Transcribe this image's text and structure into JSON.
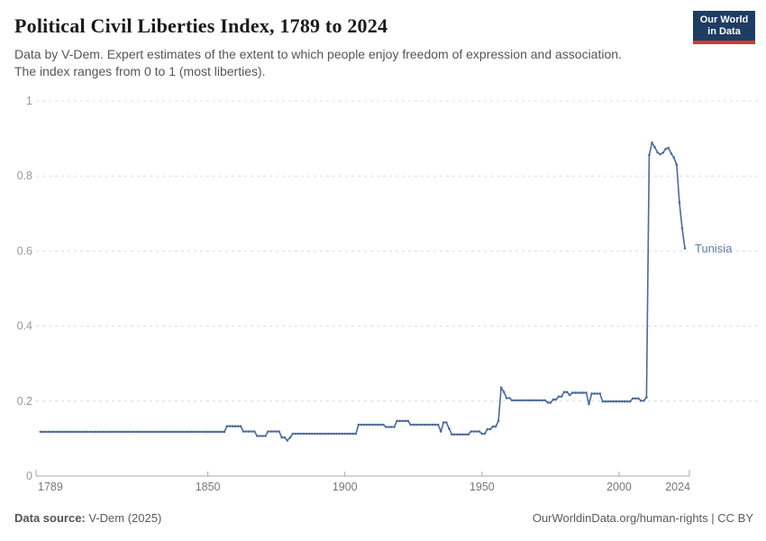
{
  "header": {
    "title": "Political Civil Liberties Index, 1789 to 2024",
    "subtitle_line1": "Data by V-Dem. Expert estimates of the extent to which people enjoy freedom of expression and association.",
    "subtitle_line2": "The index ranges from 0 to 1 (most liberties).",
    "logo": {
      "line1": "Our World",
      "line2": "in Data",
      "bg_color": "#1d3d63",
      "accent_color": "#d23a2f"
    }
  },
  "chart_data": {
    "type": "line",
    "title": "Political Civil Liberties Index, 1789 to 2024",
    "series_name": "Tunisia",
    "line_color": "#4C6A9C",
    "grid": "dashed-horizontal",
    "legend_position": "end-of-line-label",
    "xlim": [
      1789,
      2024
    ],
    "ylim": [
      0,
      1
    ],
    "x_ticks": [
      1789,
      1850,
      1900,
      1950,
      2000,
      2024
    ],
    "y_ticks": [
      0,
      0.2,
      0.4,
      0.6,
      0.8,
      1
    ],
    "y_tick_labels": [
      "0",
      "0.2",
      "0.4",
      "0.6",
      "0.8",
      "1"
    ],
    "x_tick_labels": [
      "1789",
      "1850",
      "1900",
      "1950",
      "2000",
      "2024"
    ],
    "segments_note": "each segment is [startYear, endYear, indexValue]; one data point per year",
    "segments": [
      [
        1789,
        1856,
        0.118
      ],
      [
        1857,
        1862,
        0.133
      ],
      [
        1863,
        1867,
        0.119
      ],
      [
        1868,
        1871,
        0.107
      ],
      [
        1872,
        1876,
        0.119
      ],
      [
        1877,
        1878,
        0.103
      ],
      [
        1879,
        1879,
        0.095
      ],
      [
        1880,
        1880,
        0.103
      ],
      [
        1881,
        1904,
        0.113
      ],
      [
        1905,
        1914,
        0.137
      ],
      [
        1915,
        1918,
        0.131
      ],
      [
        1919,
        1923,
        0.147
      ],
      [
        1924,
        1934,
        0.137
      ],
      [
        1935,
        1935,
        0.119
      ],
      [
        1936,
        1937,
        0.143
      ],
      [
        1938,
        1938,
        0.127
      ],
      [
        1939,
        1945,
        0.111
      ],
      [
        1946,
        1949,
        0.119
      ],
      [
        1950,
        1951,
        0.113
      ],
      [
        1952,
        1953,
        0.125
      ],
      [
        1954,
        1955,
        0.132
      ],
      [
        1956,
        1956,
        0.147
      ],
      [
        1957,
        1957,
        0.236
      ],
      [
        1958,
        1958,
        0.224
      ],
      [
        1959,
        1960,
        0.208
      ],
      [
        1961,
        1973,
        0.202
      ],
      [
        1974,
        1975,
        0.196
      ],
      [
        1976,
        1977,
        0.204
      ],
      [
        1978,
        1979,
        0.212
      ],
      [
        1980,
        1981,
        0.224
      ],
      [
        1982,
        1982,
        0.216
      ],
      [
        1983,
        1988,
        0.222
      ],
      [
        1989,
        1989,
        0.192
      ],
      [
        1990,
        1993,
        0.22
      ],
      [
        1994,
        2004,
        0.199
      ],
      [
        2005,
        2007,
        0.207
      ],
      [
        2008,
        2009,
        0.201
      ],
      [
        2010,
        2010,
        0.21
      ],
      [
        2011,
        2011,
        0.856
      ],
      [
        2012,
        2012,
        0.889
      ],
      [
        2013,
        2013,
        0.877
      ],
      [
        2014,
        2014,
        0.863
      ],
      [
        2015,
        2015,
        0.858
      ],
      [
        2016,
        2016,
        0.862
      ],
      [
        2017,
        2017,
        0.872
      ],
      [
        2018,
        2018,
        0.875
      ],
      [
        2019,
        2019,
        0.86
      ],
      [
        2020,
        2020,
        0.849
      ],
      [
        2021,
        2021,
        0.83
      ],
      [
        2022,
        2022,
        0.73
      ],
      [
        2023,
        2023,
        0.66
      ],
      [
        2024,
        2024,
        0.607
      ]
    ],
    "colors": {
      "gridline": "#dcdcdc",
      "axis_line": "#a8a8a8",
      "y_tick_text": "#999999",
      "x_tick_text": "#777777",
      "series_label": "#5b7cab"
    }
  },
  "footer": {
    "source_label": "Data source:",
    "source_value": " V-Dem (2025)",
    "rights": "OurWorldinData.org/human-rights | CC BY"
  }
}
